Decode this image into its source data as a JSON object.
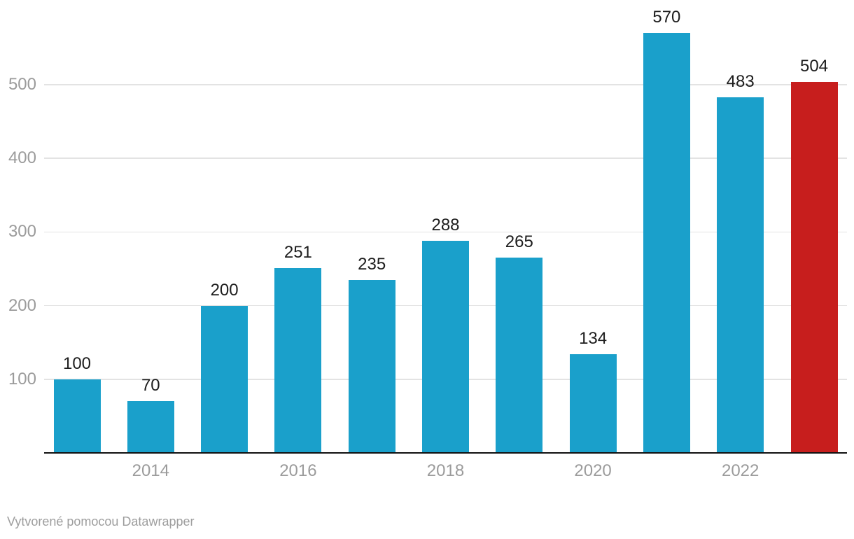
{
  "chart_data": {
    "type": "bar",
    "values": [
      100,
      70,
      200,
      251,
      235,
      288,
      265,
      134,
      570,
      483,
      504
    ],
    "value_labels": [
      "100",
      "70",
      "200",
      "251",
      "235",
      "288",
      "265",
      "134",
      "570",
      "483",
      "504"
    ],
    "highlight_index": 10,
    "y_ticks": [
      "100",
      "200",
      "300",
      "400",
      "500"
    ],
    "x_ticks": [
      {
        "label": "2014",
        "bar_index": 1
      },
      {
        "label": "2016",
        "bar_index": 3
      },
      {
        "label": "2018",
        "bar_index": 5
      },
      {
        "label": "2020",
        "bar_index": 7
      },
      {
        "label": "2022",
        "bar_index": 9
      }
    ],
    "ylim": [
      0,
      580
    ],
    "grid": true,
    "legend": "none",
    "title": "",
    "xlabel": "",
    "ylabel": "",
    "colors": {
      "bar": "#1aa0cb",
      "highlight": "#c71e1d",
      "grid": "#e3e3e3",
      "axis": "#111111",
      "tick_label": "#9b9b9b",
      "value_label": "#1d1d1d"
    }
  },
  "footer": {
    "attribution": "Vytvorené pomocou Datawrapper"
  }
}
